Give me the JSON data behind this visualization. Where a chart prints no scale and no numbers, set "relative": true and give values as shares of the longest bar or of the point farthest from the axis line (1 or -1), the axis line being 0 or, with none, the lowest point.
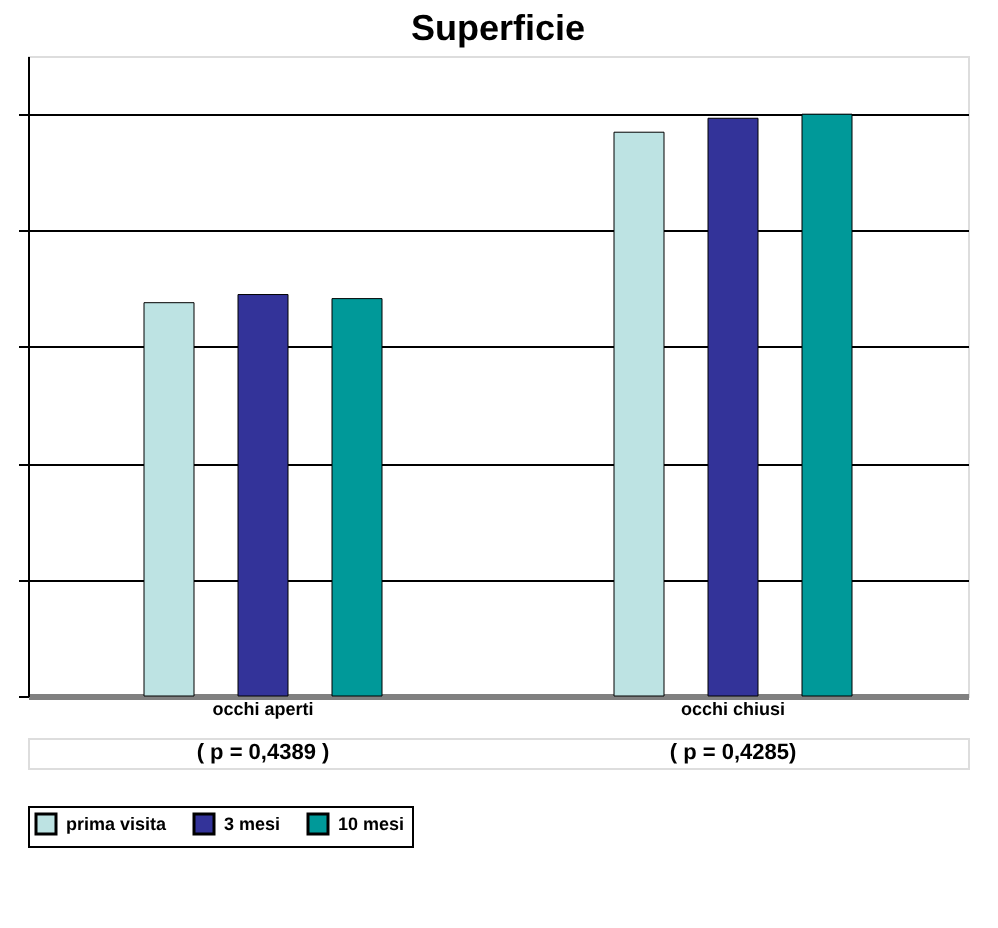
{
  "chart_data": {
    "type": "bar",
    "title": "Superficie",
    "relative": true,
    "grid": "y",
    "legend": "bottom",
    "categories": [
      "occhi aperti",
      "occhi chiusi"
    ],
    "series": [
      {
        "name": "prima visita",
        "color": "#bde3e3",
        "values": [
          0.676,
          0.969
        ]
      },
      {
        "name": "3 mesi",
        "color": "#333399",
        "values": [
          0.69,
          0.993
        ]
      },
      {
        "name": "10 mesi",
        "color": "#009999",
        "values": [
          0.683,
          1.0
        ]
      }
    ],
    "annotations": [
      "( p = 0,4389 )",
      "( p = 0,4285)"
    ]
  }
}
